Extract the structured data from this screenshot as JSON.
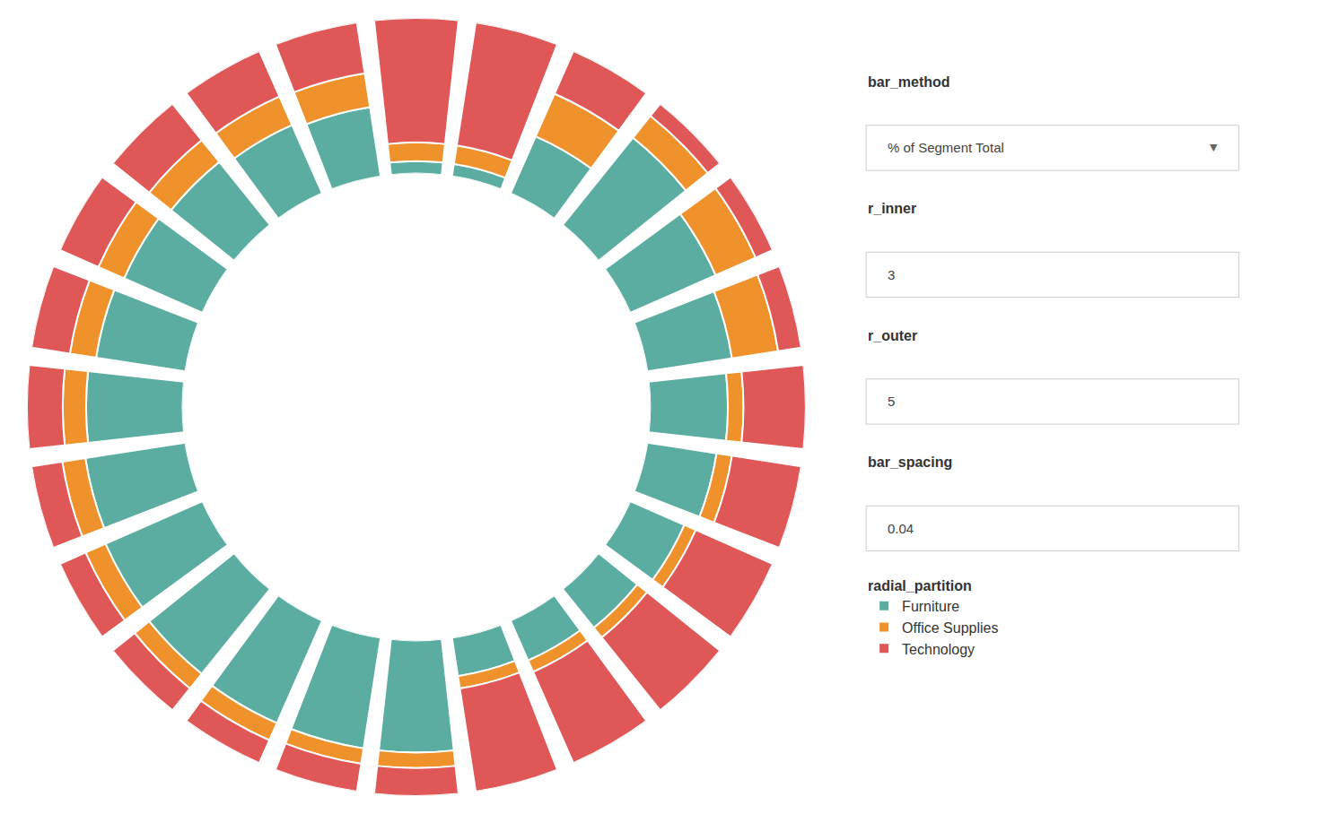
{
  "chart_data": {
    "type": "radial_bar",
    "stacked": true,
    "grid": false,
    "tick_labels": false,
    "ylim": [
      0,
      1
    ],
    "r_inner": 3,
    "r_outer": 5,
    "categories": [
      null,
      null,
      null,
      null,
      null,
      null,
      null,
      null,
      null,
      null,
      null,
      null,
      null,
      null,
      null,
      null,
      null,
      null,
      null,
      null,
      null,
      null,
      null,
      null
    ],
    "legend_title": "radial_partition",
    "series": [
      {
        "name": "Furniture",
        "color": "#5aada0",
        "values": [
          0.08,
          0.08,
          0.4,
          0.72,
          0.6,
          0.55,
          0.5,
          0.45,
          0.38,
          0.32,
          0.28,
          0.25,
          0.72,
          0.72,
          0.72,
          0.7,
          0.68,
          0.65,
          0.62,
          0.58,
          0.55,
          0.52,
          0.48,
          0.45
        ]
      },
      {
        "name": "Office Supplies",
        "color": "#f0922b",
        "values": [
          0.12,
          0.12,
          0.3,
          0.18,
          0.28,
          0.3,
          0.1,
          0.1,
          0.08,
          0.08,
          0.08,
          0.08,
          0.1,
          0.1,
          0.12,
          0.12,
          0.14,
          0.15,
          0.15,
          0.17,
          0.18,
          0.18,
          0.2,
          0.22
        ]
      },
      {
        "name": "Technology",
        "color": "#e05757",
        "values": [
          0.8,
          0.8,
          0.3,
          0.1,
          0.12,
          0.15,
          0.4,
          0.45,
          0.54,
          0.6,
          0.64,
          0.67,
          0.18,
          0.18,
          0.16,
          0.18,
          0.18,
          0.2,
          0.23,
          0.25,
          0.27,
          0.3,
          0.32,
          0.33
        ]
      }
    ],
    "annotations": [
      [
        "bar_method",
        "% of Segment Total",
        "▼"
      ],
      [
        "r_inner",
        "3"
      ],
      [
        "r_outer",
        "5"
      ],
      [
        "bar_spacing",
        "0.04"
      ]
    ]
  }
}
